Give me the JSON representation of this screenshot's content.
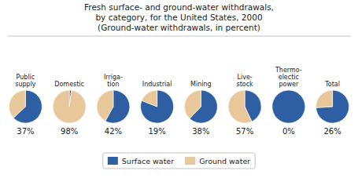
{
  "chart_data": {
    "type": "pie",
    "title": "Fresh surface- and ground-water withdrawals,\nby category, for the United States, 2000",
    "subtitle": "(Ground-water withdrawals, in percent)",
    "categories": [
      "Public\nsupply",
      "Domestic",
      "Irriga-\ntion",
      "Industrial",
      "Mining",
      "Live-\nstock",
      "Thermo-\nelectic\npower",
      "Total"
    ],
    "series": [
      {
        "name": "Surface water",
        "color": "#2e5fa3",
        "values": [
          63,
          2,
          58,
          81,
          62,
          43,
          100,
          74
        ]
      },
      {
        "name": "Ground water",
        "color": "#e8c89a",
        "values": [
          37,
          98,
          42,
          19,
          38,
          57,
          0,
          26
        ],
        "value_labels": [
          "37%",
          "98%",
          "42%",
          "19%",
          "38%",
          "57%",
          "0%",
          "26%"
        ]
      }
    ],
    "legend": "bottom"
  }
}
